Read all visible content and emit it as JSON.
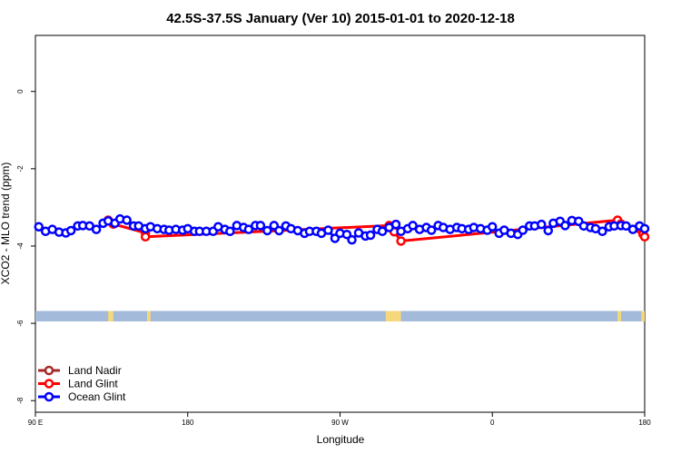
{
  "chart_data": {
    "type": "line",
    "title": "42.5S-37.5S January (Ver 10)   2015-01-01 to 2020-12-18",
    "xlabel": "Longitude",
    "ylabel": "XCO2 - MLO trend (ppm)",
    "xlim": [
      90,
      450
    ],
    "ylim": [
      -8.3,
      1.45
    ],
    "xticks": [
      {
        "value": 90,
        "label": "90 E"
      },
      {
        "value": 180,
        "label": "180"
      },
      {
        "value": 270,
        "label": "90 W"
      },
      {
        "value": 360,
        "label": "0"
      },
      {
        "value": 450,
        "label": "180"
      }
    ],
    "yticks": [
      {
        "value": 0,
        "label": "0"
      },
      {
        "value": -2,
        "label": "-2"
      },
      {
        "value": -4,
        "label": "-4"
      },
      {
        "value": -6,
        "label": "-6"
      },
      {
        "value": -8,
        "label": "-8"
      }
    ],
    "grid": false,
    "legend_position": "bottom-left",
    "land_mask_band": {
      "y_range": [
        -5.95,
        -5.68
      ],
      "ocean_color": "#a3bada",
      "land_color": "#f5d87a",
      "land_segments": [
        [
          133,
          136
        ],
        [
          156,
          158
        ],
        [
          297,
          306
        ],
        [
          434,
          436
        ],
        [
          448,
          450
        ]
      ]
    },
    "series": [
      {
        "name": "Land Nadir",
        "color": "#a52a2a",
        "x": [],
        "y": []
      },
      {
        "name": "Land Glint",
        "color": "#ff0000",
        "x": [
          133,
          136,
          155,
          155,
          299,
          302,
          306,
          434,
          436,
          449,
          450
        ],
        "y": [
          -3.33,
          -3.43,
          -3.66,
          -3.76,
          -3.47,
          -3.63,
          -3.87,
          -3.33,
          -3.43,
          -3.69,
          -3.76
        ]
      },
      {
        "name": "Ocean Glint",
        "color": "#0000ff",
        "x": [
          92,
          96,
          100,
          104,
          108,
          111,
          115,
          118,
          122,
          126,
          130,
          133,
          137,
          140,
          144,
          148,
          151,
          155,
          158,
          162,
          166,
          169,
          173,
          177,
          180,
          184,
          187,
          191,
          195,
          198,
          202,
          205,
          209,
          213,
          216,
          220,
          223,
          227,
          231,
          234,
          238,
          241,
          245,
          249,
          252,
          256,
          259,
          263,
          267,
          270,
          274,
          277,
          281,
          285,
          288,
          292,
          295,
          299,
          303,
          306,
          310,
          313,
          317,
          321,
          324,
          328,
          331,
          335,
          339,
          342,
          346,
          349,
          353,
          357,
          360,
          364,
          367,
          371,
          375,
          378,
          382,
          385,
          389,
          393,
          396,
          400,
          403,
          407,
          411,
          414,
          418,
          421,
          425,
          429,
          432,
          436,
          439,
          443,
          447,
          450
        ],
        "y": [
          -3.5,
          -3.62,
          -3.57,
          -3.64,
          -3.66,
          -3.6,
          -3.48,
          -3.47,
          -3.48,
          -3.57,
          -3.41,
          -3.35,
          -3.41,
          -3.3,
          -3.33,
          -3.48,
          -3.48,
          -3.55,
          -3.5,
          -3.55,
          -3.57,
          -3.59,
          -3.57,
          -3.59,
          -3.55,
          -3.62,
          -3.62,
          -3.62,
          -3.62,
          -3.5,
          -3.57,
          -3.62,
          -3.47,
          -3.52,
          -3.57,
          -3.47,
          -3.47,
          -3.6,
          -3.47,
          -3.6,
          -3.48,
          -3.55,
          -3.6,
          -3.67,
          -3.62,
          -3.62,
          -3.67,
          -3.59,
          -3.8,
          -3.67,
          -3.7,
          -3.84,
          -3.66,
          -3.74,
          -3.72,
          -3.57,
          -3.62,
          -3.52,
          -3.44,
          -3.62,
          -3.55,
          -3.47,
          -3.57,
          -3.52,
          -3.59,
          -3.47,
          -3.52,
          -3.57,
          -3.52,
          -3.55,
          -3.57,
          -3.52,
          -3.55,
          -3.59,
          -3.5,
          -3.67,
          -3.59,
          -3.67,
          -3.7,
          -3.59,
          -3.48,
          -3.48,
          -3.44,
          -3.6,
          -3.41,
          -3.36,
          -3.47,
          -3.34,
          -3.36,
          -3.48,
          -3.52,
          -3.55,
          -3.62,
          -3.5,
          -3.48,
          -3.47,
          -3.48,
          -3.57,
          -3.48,
          -3.55
        ]
      }
    ]
  }
}
